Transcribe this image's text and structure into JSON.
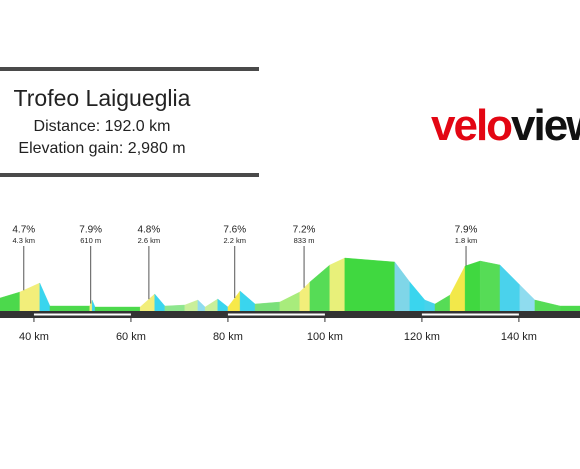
{
  "header": {
    "title": "Trofeo Laigueglia",
    "distance": "Distance: 192.0 km",
    "elevation_gain": "Elevation gain: 2,980 m"
  },
  "logo": [
    "velo",
    "viewer"
  ],
  "chart_data": {
    "type": "area",
    "x": [
      33.0,
      37.1,
      41.2,
      43.3,
      51.5,
      52.0,
      52.6,
      61.9,
      64.9,
      67.0,
      71.1,
      73.8,
      75.3,
      77.9,
      80.0,
      82.5,
      85.6,
      90.7,
      94.8,
      96.9,
      101.0,
      104.1,
      114.4,
      117.5,
      120.6,
      122.7,
      125.8,
      128.9,
      132.0,
      136.1,
      140.2,
      143.3,
      148.5,
      152.6
    ],
    "values": [
      75,
      105,
      150,
      35,
      35,
      65,
      30,
      30,
      95,
      35,
      40,
      65,
      30,
      70,
      30,
      110,
      45,
      55,
      105,
      155,
      240,
      275,
      255,
      155,
      65,
      45,
      90,
      235,
      260,
      240,
      140,
      65,
      35,
      35
    ],
    "segment_colors": [
      "#4cd94c",
      "#f2ee7a",
      "#3ad5ee",
      "#4cd94c",
      "#f2ee7a",
      "#3ad5ee",
      "#4cd94c",
      "#f2ee7a",
      "#3ad5ee",
      "#8ee68e",
      "#c9ef9a",
      "#8fdcef",
      "#c9ef9a",
      "#3ad5ee",
      "#f7e94a",
      "#3ad5ee",
      "#7ae07a",
      "#a8ec7c",
      "#f2ee7a",
      "#56dc56",
      "#e8f07a",
      "#40d840",
      "#7fd6e8",
      "#3ad5ee",
      "#48d2ea",
      "#56dc56",
      "#f2e84a",
      "#40d840",
      "#56dc56",
      "#4ad2ec",
      "#8fdcef",
      "#56dc56",
      "#4cd94c"
    ],
    "xlim": [
      33.0,
      152.6
    ],
    "ylim": [
      0,
      500
    ],
    "xticks": [
      {
        "value": 40,
        "label": "40 km"
      },
      {
        "value": 60,
        "label": "60 km"
      },
      {
        "value": 80,
        "label": "80 km"
      },
      {
        "value": 100,
        "label": "100 km"
      },
      {
        "value": 120,
        "label": "120 km"
      },
      {
        "value": 140,
        "label": "140 km"
      }
    ],
    "climbs": [
      {
        "km": 37.9,
        "gradient": "4.7%",
        "length": "4.3 km"
      },
      {
        "km": 51.7,
        "gradient": "7.9%",
        "length": "610 m"
      },
      {
        "km": 63.7,
        "gradient": "4.8%",
        "length": "2.6 km"
      },
      {
        "km": 81.4,
        "gradient": "7.6%",
        "length": "2.2 km"
      },
      {
        "km": 95.7,
        "gradient": "7.2%",
        "length": "833 m"
      },
      {
        "km": 129.1,
        "gradient": "7.9%",
        "length": "1.8 km"
      }
    ]
  }
}
